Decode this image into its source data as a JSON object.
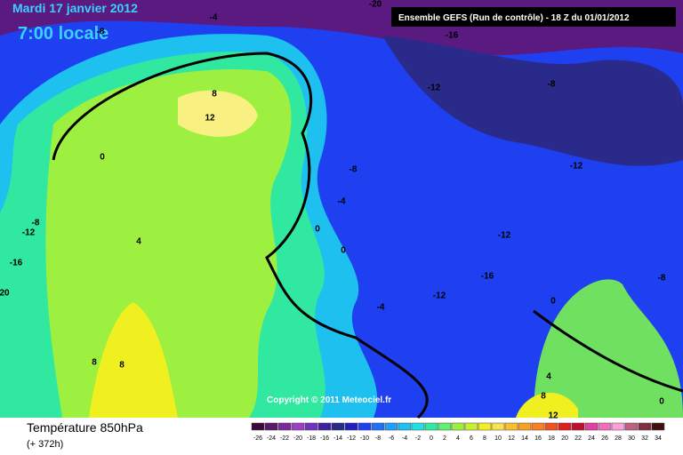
{
  "header": {
    "date": "Mardi 17 janvier 2012",
    "time": "7:00 locale",
    "run": "Ensemble GEFS (Run de contrôle)  -  18 Z du 01/01/2012"
  },
  "copyright": "Copyright © 2011 Meteociel.fr",
  "contour_labels": [
    "-20",
    "-4",
    "-8",
    "-16",
    "-12",
    "-8",
    "8",
    "12",
    "0",
    "-8",
    "-12",
    "-4",
    "0",
    "4",
    "0",
    "-12",
    "-8",
    "-12",
    "-16",
    "-16",
    "-12",
    "-8",
    "0",
    "-4",
    "8",
    "8",
    "4",
    "8",
    "12",
    "0",
    "20"
  ],
  "legend": {
    "title": "Température 850hPa",
    "lead": "(+ 372h)",
    "scale": [
      -26,
      -24,
      -22,
      -20,
      -18,
      -16,
      -14,
      -12,
      -10,
      -8,
      -6,
      -4,
      -2,
      0,
      2,
      4,
      6,
      8,
      10,
      12,
      14,
      16,
      18,
      20,
      22,
      24,
      26,
      28,
      30,
      32,
      34
    ]
  }
}
